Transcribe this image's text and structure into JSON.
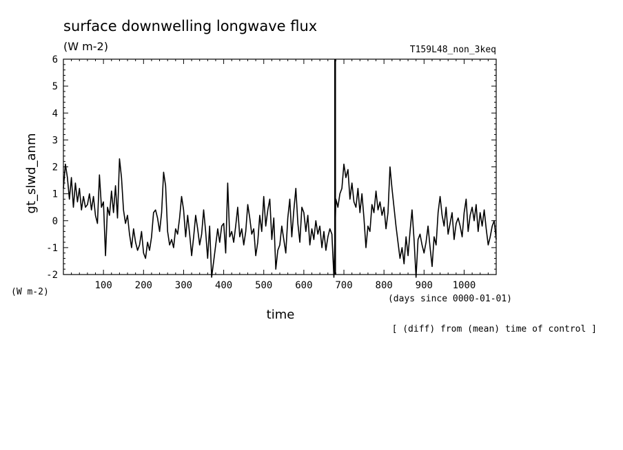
{
  "chart_data": {
    "type": "line",
    "title": "surface downwelling longwave flux",
    "title_unit": "(W m-2)",
    "run_label": "T159L48_non_3keq",
    "ylabel": "gt_slwd_anm",
    "yunit": "(W m-2)",
    "xlabel": "time",
    "xunit": "(days since 0000-01-01)",
    "note": "[ (diff) from (mean) time of control ]",
    "xlim": [
      0,
      1080
    ],
    "ylim": [
      -2,
      6
    ],
    "xticks": [
      "100",
      "200",
      "300",
      "400",
      "500",
      "600",
      "700",
      "800",
      "900",
      "1000"
    ],
    "yticks": [
      "-2",
      "-1",
      "0",
      "1",
      "2",
      "3",
      "4",
      "5",
      "6"
    ],
    "marker_x": 678,
    "series": [
      {
        "x": [
          0,
          5,
          10,
          15,
          20,
          25,
          30,
          35,
          40,
          45,
          50,
          55,
          60,
          65,
          70,
          75,
          80,
          85,
          90,
          95,
          100,
          105,
          110,
          115,
          120,
          125,
          130,
          135,
          140,
          145,
          150,
          155,
          160,
          165,
          170,
          175,
          180,
          185,
          190,
          195,
          200,
          205,
          210,
          215,
          220,
          225,
          230,
          235,
          240,
          245,
          250,
          255,
          260,
          265,
          270,
          275,
          280,
          285,
          290,
          295,
          300,
          305,
          310,
          315,
          320,
          325,
          330,
          335,
          340,
          345,
          350,
          355,
          360,
          365,
          370,
          375,
          380,
          385,
          390,
          395,
          400,
          405,
          410,
          415,
          420,
          425,
          430,
          435,
          440,
          445,
          450,
          455,
          460,
          465,
          470,
          475,
          480,
          485,
          490,
          495,
          500,
          505,
          510,
          515,
          520,
          525,
          530,
          535,
          540,
          545,
          550,
          555,
          560,
          565,
          570,
          575,
          580,
          585,
          590,
          595,
          600,
          605,
          610,
          615,
          620,
          625,
          630,
          635,
          640,
          645,
          650,
          655,
          660,
          665,
          670,
          675,
          680,
          685,
          690,
          695,
          700,
          705,
          710,
          715,
          720,
          725,
          730,
          735,
          740,
          745,
          750,
          755,
          760,
          765,
          770,
          775,
          780,
          785,
          790,
          795,
          800,
          805,
          810,
          815,
          820,
          825,
          830,
          835,
          840,
          845,
          850,
          855,
          860,
          865,
          870,
          875,
          880,
          885,
          890,
          895,
          900,
          905,
          910,
          915,
          920,
          925,
          930,
          935,
          940,
          945,
          950,
          955,
          960,
          965,
          970,
          975,
          980,
          985,
          990,
          995,
          1000,
          1005,
          1010,
          1015,
          1020,
          1025,
          1030,
          1035,
          1040,
          1045,
          1050,
          1055,
          1060,
          1065,
          1070,
          1075,
          1080
        ],
        "y": [
          1.2,
          2.1,
          1.6,
          0.8,
          1.6,
          0.5,
          1.4,
          0.7,
          1.2,
          0.4,
          0.9,
          0.5,
          0.6,
          1.0,
          0.4,
          0.9,
          0.2,
          -0.1,
          1.7,
          0.5,
          0.7,
          -1.3,
          0.5,
          0.2,
          1.1,
          0.3,
          1.3,
          0.1,
          2.3,
          1.6,
          0.4,
          -0.1,
          0.2,
          -0.5,
          -1.0,
          -0.3,
          -0.8,
          -1.1,
          -0.9,
          -0.4,
          -1.2,
          -1.4,
          -0.8,
          -1.1,
          -0.6,
          0.3,
          0.4,
          0.1,
          -0.4,
          0.3,
          1.8,
          1.3,
          -0.4,
          -0.9,
          -0.7,
          -1.0,
          -0.3,
          -0.5,
          0.1,
          0.9,
          0.4,
          -0.6,
          0.2,
          -0.5,
          -1.3,
          -0.6,
          0.2,
          -0.3,
          -0.9,
          -0.5,
          0.4,
          -0.4,
          -1.4,
          -0.2,
          -2.1,
          -1.5,
          -0.9,
          -0.3,
          -0.8,
          -0.2,
          -0.1,
          -1.2,
          1.4,
          -0.6,
          -0.4,
          -0.8,
          -0.2,
          0.5,
          -0.6,
          -0.3,
          -0.9,
          -0.4,
          0.6,
          0.1,
          -0.5,
          -0.3,
          -1.3,
          -0.8,
          0.2,
          -0.4,
          0.9,
          -0.2,
          0.4,
          0.8,
          -0.7,
          0.1,
          -1.8,
          -1.1,
          -0.9,
          -0.2,
          -0.7,
          -1.2,
          0.1,
          0.8,
          -0.6,
          0.4,
          1.2,
          -0.1,
          -0.8,
          0.5,
          0.3,
          -0.4,
          0.2,
          -0.9,
          -0.3,
          -0.7,
          0.0,
          -0.5,
          -0.2,
          -1.0,
          -0.4,
          -1.1,
          -0.6,
          -0.3,
          -0.5,
          -2.1,
          0.8,
          0.5,
          1.0,
          1.2,
          2.1,
          1.6,
          1.9,
          0.8,
          1.4,
          0.7,
          0.5,
          1.2,
          0.3,
          1.0,
          0.1,
          -1.0,
          -0.2,
          -0.4,
          0.6,
          0.3,
          1.1,
          0.4,
          0.7,
          0.2,
          0.5,
          -0.3,
          0.3,
          2.0,
          1.2,
          0.5,
          -0.2,
          -0.8,
          -1.4,
          -1.0,
          -1.6,
          -0.6,
          -1.3,
          -0.4,
          0.4,
          -0.7,
          -2.1,
          -0.7,
          -0.5,
          -0.9,
          -1.2,
          -0.8,
          -0.2,
          -1.0,
          -1.7,
          -0.6,
          -0.9,
          0.3,
          0.9,
          0.2,
          -0.2,
          0.5,
          -0.5,
          -0.1,
          0.3,
          -0.7,
          -0.1,
          0.1,
          -0.2,
          -0.6,
          0.3,
          0.8,
          -0.4,
          0.2,
          0.5,
          0.0,
          0.6,
          -0.4,
          0.3,
          -0.2,
          0.4,
          -0.3,
          -0.9,
          -0.6,
          -0.2,
          0.0,
          -0.7
        ]
      }
    ]
  },
  "colors": {
    "line": "#000000",
    "background": "#ffffff"
  }
}
